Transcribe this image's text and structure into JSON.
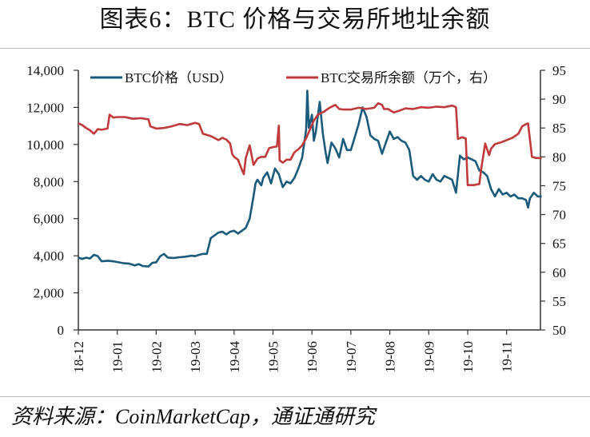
{
  "title": "图表6：BTC 价格与交易所地址余额",
  "source": "资料来源：CoinMarketCap，通证通研究",
  "colors": {
    "price": "#1a5a7a",
    "balance": "#c0393b",
    "axis": "#333333"
  },
  "legend": {
    "price": "BTC价格（USD）",
    "balance": "BTC交易所余额（万个，右）"
  },
  "chart_data": {
    "type": "line",
    "title": "图表6：BTC 价格与交易所地址余额",
    "xlabel": "",
    "ylabel_left": "BTC价格（USD）",
    "ylabel_right": "BTC交易所余额（万个）",
    "x_ticks": [
      "18-12",
      "19-01",
      "19-02",
      "19-03",
      "19-04",
      "19-05",
      "19-06",
      "19-07",
      "19-08",
      "19-09",
      "19-10",
      "19-11"
    ],
    "ylim_left": [
      0,
      14000
    ],
    "yticks_left": [
      "0",
      "2,000",
      "4,000",
      "6,000",
      "8,000",
      "10,000",
      "12,000",
      "14,000"
    ],
    "ylim_right": [
      50,
      95
    ],
    "yticks_right": [
      "50",
      "55",
      "60",
      "65",
      "70",
      "75",
      "80",
      "85",
      "90",
      "95"
    ],
    "grid": false,
    "legend_position": "top-inside",
    "x_unit_note": "x expressed as months since 18-12 (0 = 18-12, 11 = 19-11, max ≈ 11.9)",
    "series": [
      {
        "name": "BTC价格（USD）",
        "axis": "left",
        "points": [
          [
            0.0,
            3900
          ],
          [
            0.1,
            3830
          ],
          [
            0.2,
            3900
          ],
          [
            0.3,
            3850
          ],
          [
            0.4,
            4050
          ],
          [
            0.5,
            3980
          ],
          [
            0.6,
            3700
          ],
          [
            0.75,
            3730
          ],
          [
            0.9,
            3700
          ],
          [
            1.0,
            3660
          ],
          [
            1.15,
            3600
          ],
          [
            1.3,
            3580
          ],
          [
            1.45,
            3480
          ],
          [
            1.55,
            3550
          ],
          [
            1.65,
            3450
          ],
          [
            1.8,
            3420
          ],
          [
            1.9,
            3620
          ],
          [
            2.0,
            3650
          ],
          [
            2.1,
            3970
          ],
          [
            2.2,
            4100
          ],
          [
            2.3,
            3900
          ],
          [
            2.45,
            3880
          ],
          [
            2.6,
            3920
          ],
          [
            2.75,
            3950
          ],
          [
            2.9,
            4000
          ],
          [
            3.0,
            3980
          ],
          [
            3.1,
            4050
          ],
          [
            3.2,
            4100
          ],
          [
            3.3,
            4100
          ],
          [
            3.4,
            4950
          ],
          [
            3.5,
            5100
          ],
          [
            3.6,
            5250
          ],
          [
            3.7,
            5300
          ],
          [
            3.8,
            5150
          ],
          [
            3.9,
            5300
          ],
          [
            4.0,
            5350
          ],
          [
            4.1,
            5200
          ],
          [
            4.2,
            5350
          ],
          [
            4.3,
            5500
          ],
          [
            4.4,
            6000
          ],
          [
            4.5,
            7200
          ],
          [
            4.55,
            7900
          ],
          [
            4.6,
            8100
          ],
          [
            4.7,
            7800
          ],
          [
            4.75,
            8200
          ],
          [
            4.85,
            8500
          ],
          [
            4.95,
            7900
          ],
          [
            5.05,
            8700
          ],
          [
            5.15,
            8400
          ],
          [
            5.25,
            7700
          ],
          [
            5.35,
            8000
          ],
          [
            5.45,
            7900
          ],
          [
            5.55,
            8200
          ],
          [
            5.65,
            8700
          ],
          [
            5.75,
            9300
          ],
          [
            5.85,
            10800
          ],
          [
            5.88,
            12900
          ],
          [
            5.92,
            10900
          ],
          [
            6.0,
            11600
          ],
          [
            6.05,
            10200
          ],
          [
            6.1,
            10700
          ],
          [
            6.2,
            12300
          ],
          [
            6.28,
            10600
          ],
          [
            6.35,
            9600
          ],
          [
            6.4,
            9000
          ],
          [
            6.5,
            10100
          ],
          [
            6.6,
            9800
          ],
          [
            6.7,
            9300
          ],
          [
            6.8,
            10300
          ],
          [
            6.9,
            9700
          ],
          [
            7.0,
            9700
          ],
          [
            7.1,
            10400
          ],
          [
            7.2,
            11100
          ],
          [
            7.3,
            12000
          ],
          [
            7.4,
            11500
          ],
          [
            7.5,
            10500
          ],
          [
            7.6,
            10300
          ],
          [
            7.7,
            10200
          ],
          [
            7.8,
            9500
          ],
          [
            7.9,
            10100
          ],
          [
            8.0,
            10700
          ],
          [
            8.1,
            10300
          ],
          [
            8.2,
            10400
          ],
          [
            8.3,
            10200
          ],
          [
            8.4,
            10100
          ],
          [
            8.5,
            9700
          ],
          [
            8.6,
            8300
          ],
          [
            8.7,
            8100
          ],
          [
            8.8,
            8300
          ],
          [
            8.9,
            8100
          ],
          [
            9.0,
            8000
          ],
          [
            9.1,
            8400
          ],
          [
            9.2,
            8100
          ],
          [
            9.3,
            8000
          ],
          [
            9.4,
            8300
          ],
          [
            9.5,
            8200
          ],
          [
            9.6,
            8100
          ],
          [
            9.7,
            7400
          ],
          [
            9.8,
            9400
          ],
          [
            9.9,
            9200
          ],
          [
            10.0,
            9300
          ],
          [
            10.1,
            9200
          ],
          [
            10.2,
            9100
          ],
          [
            10.3,
            8600
          ],
          [
            10.4,
            8500
          ],
          [
            10.5,
            8300
          ],
          [
            10.6,
            7600
          ],
          [
            10.7,
            7200
          ],
          [
            10.8,
            7600
          ],
          [
            10.9,
            7300
          ],
          [
            11.0,
            7400
          ],
          [
            11.1,
            7200
          ],
          [
            11.2,
            7300
          ],
          [
            11.3,
            7100
          ],
          [
            11.4,
            7100
          ],
          [
            11.5,
            7000
          ],
          [
            11.55,
            6600
          ],
          [
            11.6,
            7100
          ],
          [
            11.7,
            7400
          ],
          [
            11.8,
            7200
          ],
          [
            11.9,
            7200
          ]
        ]
      },
      {
        "name": "BTC交易所余额（万个，右）",
        "axis": "right",
        "points": [
          [
            0.0,
            85.8
          ],
          [
            0.1,
            85.5
          ],
          [
            0.2,
            85.0
          ],
          [
            0.3,
            84.6
          ],
          [
            0.4,
            84.0
          ],
          [
            0.5,
            84.8
          ],
          [
            0.6,
            84.7
          ],
          [
            0.75,
            84.9
          ],
          [
            0.8,
            87.3
          ],
          [
            0.9,
            86.8
          ],
          [
            1.0,
            86.9
          ],
          [
            1.2,
            86.9
          ],
          [
            1.4,
            86.6
          ],
          [
            1.6,
            86.7
          ],
          [
            1.8,
            86.5
          ],
          [
            1.85,
            85.3
          ],
          [
            2.0,
            84.9
          ],
          [
            2.2,
            85.0
          ],
          [
            2.4,
            85.3
          ],
          [
            2.6,
            85.7
          ],
          [
            2.8,
            85.5
          ],
          [
            3.0,
            85.9
          ],
          [
            3.1,
            85.7
          ],
          [
            3.2,
            84.0
          ],
          [
            3.4,
            83.6
          ],
          [
            3.6,
            82.9
          ],
          [
            3.7,
            83.3
          ],
          [
            3.8,
            83.0
          ],
          [
            3.9,
            82.3
          ],
          [
            3.95,
            80.5
          ],
          [
            4.0,
            80.0
          ],
          [
            4.1,
            79.5
          ],
          [
            4.2,
            77.8
          ],
          [
            4.25,
            77.0
          ],
          [
            4.3,
            79.8
          ],
          [
            4.4,
            82.0
          ],
          [
            4.5,
            78.6
          ],
          [
            4.6,
            79.7
          ],
          [
            4.7,
            80.0
          ],
          [
            4.8,
            80.0
          ],
          [
            4.9,
            81.5
          ],
          [
            5.0,
            81.7
          ],
          [
            5.1,
            81.8
          ],
          [
            5.15,
            85.4
          ],
          [
            5.17,
            79.4
          ],
          [
            5.25,
            79.0
          ],
          [
            5.35,
            79.5
          ],
          [
            5.45,
            79.5
          ],
          [
            5.55,
            80.8
          ],
          [
            5.65,
            81.3
          ],
          [
            5.75,
            82.0
          ],
          [
            5.85,
            83.2
          ],
          [
            5.95,
            84.8
          ],
          [
            6.05,
            86.3
          ],
          [
            6.15,
            87.3
          ],
          [
            6.3,
            87.8
          ],
          [
            6.45,
            88.5
          ],
          [
            6.6,
            89.0
          ],
          [
            6.7,
            88.3
          ],
          [
            6.8,
            88.2
          ],
          [
            7.0,
            88.2
          ],
          [
            7.2,
            88.5
          ],
          [
            7.4,
            88.3
          ],
          [
            7.6,
            88.5
          ],
          [
            7.7,
            89.3
          ],
          [
            7.8,
            89.0
          ],
          [
            7.85,
            88.3
          ],
          [
            7.95,
            88.3
          ],
          [
            8.1,
            87.7
          ],
          [
            8.2,
            87.9
          ],
          [
            8.4,
            88.4
          ],
          [
            8.6,
            88.3
          ],
          [
            8.8,
            88.6
          ],
          [
            9.0,
            88.5
          ],
          [
            9.2,
            88.7
          ],
          [
            9.4,
            88.6
          ],
          [
            9.6,
            88.9
          ],
          [
            9.7,
            88.6
          ],
          [
            9.75,
            83.1
          ],
          [
            9.85,
            83.4
          ],
          [
            9.95,
            83.2
          ],
          [
            10.0,
            75.1
          ],
          [
            10.15,
            75.1
          ],
          [
            10.3,
            75.3
          ],
          [
            10.35,
            78.0
          ],
          [
            10.45,
            82.3
          ],
          [
            10.55,
            80.3
          ],
          [
            10.6,
            81.4
          ],
          [
            10.7,
            82.2
          ],
          [
            10.85,
            82.5
          ],
          [
            11.0,
            82.9
          ],
          [
            11.15,
            83.3
          ],
          [
            11.3,
            84.0
          ],
          [
            11.4,
            85.3
          ],
          [
            11.5,
            85.7
          ],
          [
            11.55,
            85.8
          ],
          [
            11.65,
            80.0
          ],
          [
            11.75,
            79.8
          ],
          [
            11.9,
            79.8
          ]
        ]
      }
    ]
  }
}
